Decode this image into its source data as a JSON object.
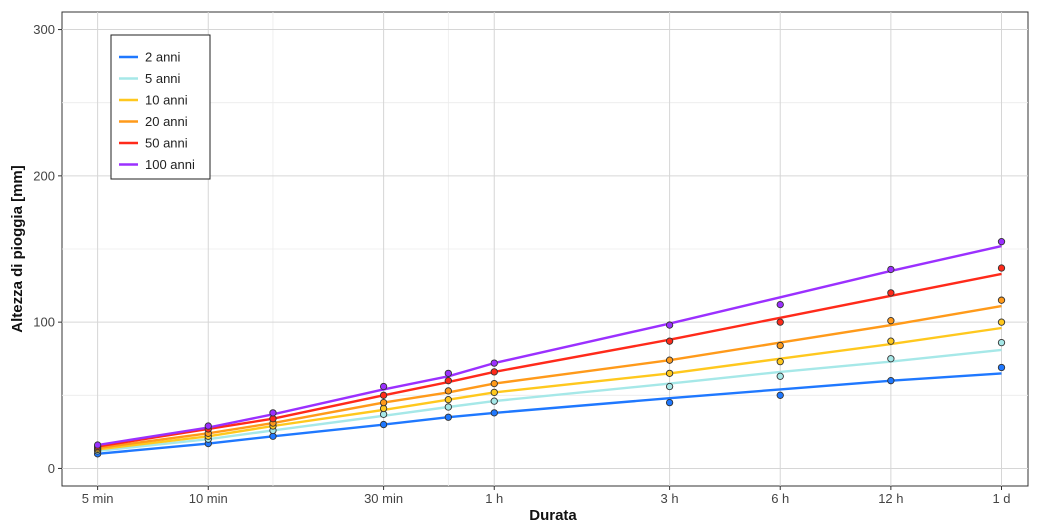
{
  "chart_data": {
    "type": "line",
    "xlabel": "Durata",
    "ylabel": "Altezza di pioggia [mm]",
    "x_scale": "log",
    "x_unit": "minutes",
    "xlim": [
      4,
      1700
    ],
    "ylim": [
      -12,
      312
    ],
    "x_ticks": [
      {
        "value": 5,
        "label": "5 min"
      },
      {
        "value": 10,
        "label": "10 min"
      },
      {
        "value": 30,
        "label": "30 min"
      },
      {
        "value": 60,
        "label": "1 h"
      },
      {
        "value": 180,
        "label": "3 h"
      },
      {
        "value": 360,
        "label": "6 h"
      },
      {
        "value": 720,
        "label": "12 h"
      },
      {
        "value": 1440,
        "label": "1 d"
      }
    ],
    "x_minor_ticks": [
      15,
      45
    ],
    "y_ticks": [
      0,
      100,
      200,
      300
    ],
    "y_minor_ticks": [
      50,
      150,
      250
    ],
    "grid": true,
    "legend_position": "top-left",
    "x_points": [
      5,
      10,
      15,
      30,
      45,
      60,
      180,
      360,
      720,
      1440
    ],
    "series": [
      {
        "name": "2 anni",
        "color": "#1f78ff",
        "line": [
          10,
          17,
          22,
          30,
          35,
          38,
          48,
          54,
          60,
          65
        ],
        "points": [
          10,
          17,
          22,
          30,
          35,
          38,
          45,
          50,
          60,
          69
        ]
      },
      {
        "name": "5 anni",
        "color": "#a6e8e8",
        "line": [
          12,
          20,
          26,
          36,
          42,
          46,
          58,
          66,
          73,
          81
        ],
        "points": [
          12,
          20,
          26,
          37,
          42,
          46,
          56,
          63,
          75,
          86
        ]
      },
      {
        "name": "10 anni",
        "color": "#ffc81e",
        "line": [
          13,
          22,
          29,
          40,
          47,
          52,
          65,
          75,
          85,
          96
        ],
        "points": [
          13,
          22,
          29,
          41,
          47,
          52,
          65,
          73,
          87,
          100
        ]
      },
      {
        "name": "20 anni",
        "color": "#ff9a1a",
        "line": [
          14,
          24,
          31,
          45,
          52,
          58,
          74,
          86,
          98,
          111
        ],
        "points": [
          14,
          24,
          31,
          45,
          53,
          58,
          74,
          84,
          101,
          115
        ]
      },
      {
        "name": "50 anni",
        "color": "#ff2a1a",
        "line": [
          15,
          27,
          34,
          50,
          59,
          66,
          88,
          103,
          118,
          133
        ],
        "points": [
          15,
          27,
          34,
          50,
          60,
          66,
          87,
          100,
          120,
          137
        ]
      },
      {
        "name": "100 anni",
        "color": "#9b30ff",
        "line": [
          16,
          28,
          37,
          54,
          63,
          72,
          99,
          117,
          135,
          152
        ],
        "points": [
          16,
          29,
          38,
          56,
          65,
          72,
          98,
          112,
          136,
          155
        ]
      }
    ]
  }
}
